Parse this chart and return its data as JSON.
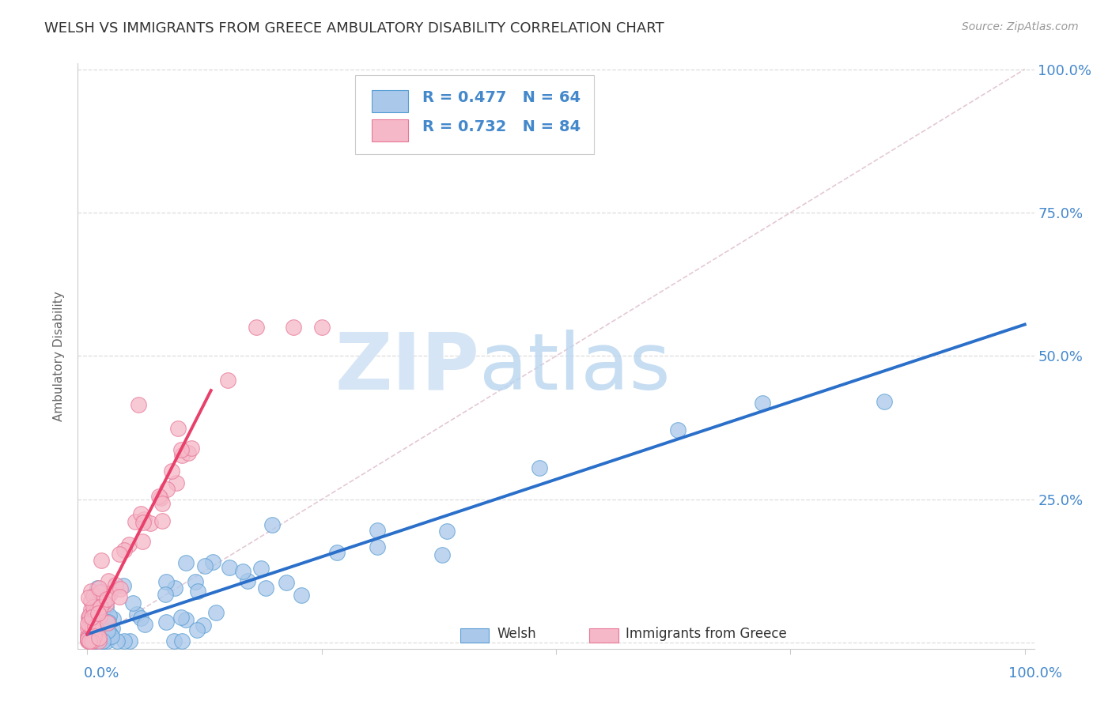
{
  "title": "WELSH VS IMMIGRANTS FROM GREECE AMBULATORY DISABILITY CORRELATION CHART",
  "source": "Source: ZipAtlas.com",
  "ylabel": "Ambulatory Disability",
  "welsh_R": 0.477,
  "welsh_N": 64,
  "greece_R": 0.732,
  "greece_N": 84,
  "welsh_color": "#aac8ea",
  "welsh_edge_color": "#5a9fd4",
  "welsh_line_color": "#2a6fc9",
  "greece_color": "#f5b8c8",
  "greece_edge_color": "#e87898",
  "greece_line_color": "#e8406a",
  "ref_line_color": "#ddbbcc",
  "grid_color": "#dddddd",
  "background_color": "#ffffff",
  "title_color": "#333333",
  "source_color": "#999999",
  "axis_label_color": "#4488cc",
  "ylabel_color": "#666666"
}
